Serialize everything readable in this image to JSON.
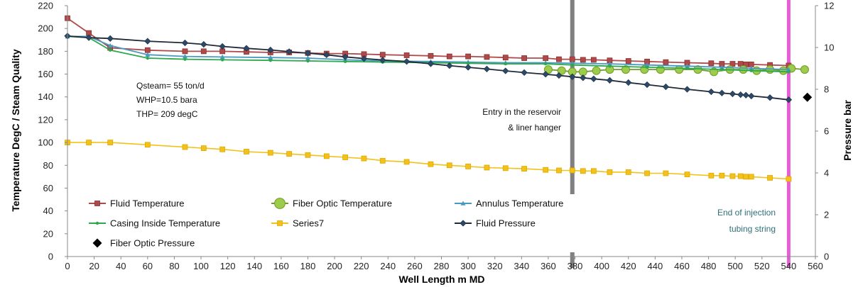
{
  "chart_data": {
    "type": "line",
    "xlabel": "Well Length m MD",
    "ylabel": "Temperature DegC / Steam Quality",
    "y2label": "Pressure bar",
    "xlim": [
      0,
      560
    ],
    "ylim": [
      0,
      220
    ],
    "y2lim": [
      0,
      12
    ],
    "x_ticks": [
      0,
      20,
      40,
      60,
      80,
      100,
      120,
      140,
      160,
      180,
      200,
      220,
      240,
      260,
      280,
      300,
      320,
      340,
      360,
      380,
      400,
      420,
      440,
      460,
      480,
      500,
      520,
      540,
      560
    ],
    "y_ticks": [
      0,
      20,
      40,
      60,
      80,
      100,
      120,
      140,
      160,
      180,
      200,
      220
    ],
    "y2_ticks": [
      0,
      2,
      4,
      6,
      8,
      10,
      12
    ],
    "grid": false,
    "legend_position": "lower-left",
    "info_box": [
      "Qsteam= 55 ton/d",
      "WHP=10.5 bara",
      "THP= 209 degC"
    ],
    "series": [
      {
        "name": "Fluid Temperature",
        "axis": "left",
        "color": "#b04a4a",
        "marker": "square",
        "x": [
          0,
          16,
          32,
          60,
          88,
          102,
          116,
          134,
          152,
          166,
          180,
          194,
          208,
          222,
          236,
          254,
          272,
          286,
          300,
          314,
          328,
          342,
          358,
          368,
          378,
          386,
          394,
          406,
          420,
          434,
          448,
          464,
          482,
          490,
          498,
          504,
          508,
          512,
          526,
          540
        ],
        "y": [
          209,
          196,
          183,
          181,
          180,
          180,
          180,
          179.5,
          179,
          179,
          178.5,
          178,
          178,
          177.5,
          177,
          176.5,
          176,
          175.5,
          175.5,
          175,
          174.5,
          174,
          174,
          173,
          173,
          172.5,
          172.5,
          172,
          171.5,
          171,
          170.5,
          170,
          169.5,
          169,
          169,
          169,
          168.5,
          168.5,
          168,
          167.5
        ]
      },
      {
        "name": "Fiber Optic Temperature",
        "axis": "left",
        "color": "#8fbf3a",
        "marker": "circle",
        "x": [
          360,
          370,
          378,
          386,
          396,
          406,
          418,
          432,
          444,
          458,
          472,
          484,
          496,
          506,
          516,
          526,
          536,
          542,
          552
        ],
        "y": [
          164,
          163,
          162,
          162,
          163,
          164,
          164,
          164,
          164,
          164,
          164,
          162,
          164,
          164,
          163,
          164,
          163,
          165,
          164
        ]
      },
      {
        "name": "Annulus Temperature",
        "axis": "left",
        "color": "#4a9ac0",
        "marker": "triangle",
        "x": [
          0,
          16,
          32,
          60,
          88,
          116,
          152,
          180,
          208,
          236,
          272,
          300,
          328,
          358,
          378,
          406,
          434,
          464,
          490,
          512,
          540
        ],
        "y": [
          193,
          193,
          185,
          177,
          175.5,
          175,
          174.5,
          174,
          172.5,
          171.5,
          171,
          170.5,
          170,
          170,
          169.5,
          169,
          168,
          167,
          166,
          165,
          164
        ]
      },
      {
        "name": "Casing Inside Temperature",
        "axis": "left",
        "color": "#2ea84f",
        "marker": "dot",
        "x": [
          0,
          16,
          32,
          60,
          88,
          116,
          152,
          180,
          208,
          236,
          272,
          300,
          328,
          358,
          378,
          406,
          434,
          464,
          490,
          512,
          540
        ],
        "y": [
          193,
          192,
          181,
          174,
          173,
          172.5,
          172,
          171.5,
          171,
          170.5,
          170,
          169.5,
          169,
          169,
          168,
          167,
          166,
          165,
          164,
          163,
          162
        ]
      },
      {
        "name": "Series7",
        "axis": "left",
        "color": "#f2c21a",
        "marker": "square",
        "x": [
          0,
          16,
          32,
          60,
          88,
          102,
          116,
          134,
          152,
          166,
          180,
          194,
          208,
          222,
          236,
          254,
          272,
          286,
          300,
          314,
          328,
          342,
          358,
          368,
          378,
          386,
          394,
          406,
          420,
          434,
          448,
          464,
          482,
          490,
          498,
          504,
          508,
          512,
          526,
          540
        ],
        "y": [
          100,
          100,
          100,
          98,
          96,
          95,
          94,
          92,
          91,
          90,
          89,
          88,
          87,
          86,
          84,
          83,
          81,
          80,
          79,
          78,
          77.5,
          77,
          76,
          75.5,
          75.5,
          75,
          75,
          74,
          74,
          73,
          73,
          72,
          71,
          71,
          70.5,
          70.5,
          70,
          70,
          69,
          68
        ]
      },
      {
        "name": "Fluid Pressure",
        "axis": "right",
        "color": "#1e2a3a",
        "marker": "diamond",
        "x": [
          0,
          16,
          32,
          60,
          88,
          102,
          116,
          134,
          152,
          166,
          180,
          194,
          208,
          222,
          236,
          254,
          272,
          286,
          300,
          314,
          328,
          342,
          358,
          368,
          378,
          386,
          394,
          406,
          420,
          434,
          448,
          464,
          482,
          490,
          498,
          504,
          508,
          512,
          526,
          540
        ],
        "y": [
          10.55,
          10.47,
          10.43,
          10.3,
          10.22,
          10.15,
          10.05,
          9.96,
          9.88,
          9.8,
          9.73,
          9.65,
          9.55,
          9.47,
          9.4,
          9.33,
          9.22,
          9.13,
          9.05,
          8.97,
          8.88,
          8.8,
          8.72,
          8.66,
          8.6,
          8.55,
          8.5,
          8.43,
          8.32,
          8.22,
          8.12,
          8.0,
          7.88,
          7.82,
          7.78,
          7.74,
          7.72,
          7.68,
          7.6,
          7.5
        ]
      },
      {
        "name": "Fiber Optic Pressure",
        "axis": "right",
        "color": "#000000",
        "marker": "diamond",
        "x": [
          554
        ],
        "y": [
          7.62
        ]
      }
    ],
    "vlines": [
      {
        "x": 378,
        "color": "#808080",
        "label": [
          "Entry in the reservoir",
          "& liner hanger"
        ]
      },
      {
        "x": 540,
        "color": "#e85cd6",
        "label": [
          "End of injection",
          "tubing string"
        ]
      }
    ]
  }
}
